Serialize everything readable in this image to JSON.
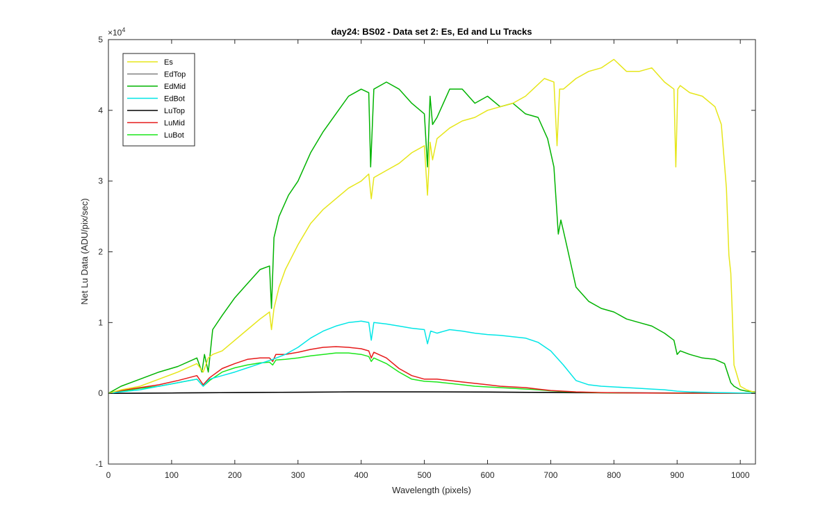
{
  "chart_data": {
    "type": "line",
    "title": "day24: BS02 - Data set 2: Es, Ed and Lu Tracks",
    "xlabel": "Wavelength (pixels)",
    "ylabel": "Net Lu Data (ADU/pix/sec)",
    "y_exponent_label": "×10",
    "y_exponent": "4",
    "xlim": [
      0,
      1024
    ],
    "ylim": [
      -1,
      5
    ],
    "x_ticks": [
      0,
      100,
      200,
      300,
      400,
      500,
      600,
      700,
      800,
      900,
      1000
    ],
    "x_tick_labels": [
      "0",
      "100",
      "200",
      "300",
      "400",
      "500",
      "600",
      "700",
      "800",
      "900",
      "1000"
    ],
    "y_ticks": [
      -1,
      0,
      1,
      2,
      3,
      4,
      5
    ],
    "y_tick_labels": [
      "-1",
      "0",
      "1",
      "2",
      "3",
      "4",
      "5"
    ],
    "y_units": "×10^4 ADU/pix/sec",
    "grid": false,
    "legend_position": "top-left",
    "series": [
      {
        "name": "Es",
        "color": "#e6e619",
        "x": [
          0,
          20,
          50,
          80,
          110,
          140,
          150,
          158,
          165,
          180,
          200,
          220,
          240,
          255,
          258,
          262,
          270,
          280,
          300,
          320,
          340,
          360,
          380,
          400,
          412,
          416,
          420,
          440,
          460,
          480,
          500,
          505,
          509,
          513,
          520,
          540,
          560,
          580,
          600,
          620,
          640,
          660,
          690,
          705,
          710,
          714,
          720,
          740,
          760,
          780,
          800,
          820,
          840,
          860,
          880,
          895,
          898,
          901,
          905,
          920,
          940,
          960,
          970,
          978,
          982,
          985,
          987,
          990,
          1000,
          1010,
          1020,
          1024
        ],
        "y": [
          0.0,
          0.05,
          0.1,
          0.2,
          0.3,
          0.42,
          0.3,
          0.5,
          0.55,
          0.6,
          0.75,
          0.9,
          1.05,
          1.15,
          0.9,
          1.2,
          1.5,
          1.75,
          2.1,
          2.4,
          2.6,
          2.75,
          2.9,
          3.0,
          3.1,
          2.75,
          3.05,
          3.15,
          3.25,
          3.4,
          3.5,
          2.8,
          3.55,
          3.3,
          3.6,
          3.75,
          3.85,
          3.9,
          4.0,
          4.05,
          4.1,
          4.2,
          4.45,
          4.4,
          3.5,
          4.3,
          4.3,
          4.45,
          4.55,
          4.6,
          4.72,
          4.55,
          4.55,
          4.6,
          4.4,
          4.3,
          3.2,
          4.3,
          4.35,
          4.25,
          4.2,
          4.05,
          3.8,
          2.9,
          1.95,
          1.7,
          1.2,
          0.4,
          0.1,
          0.05,
          0.02,
          0.02
        ]
      },
      {
        "name": "EdTop",
        "color": "#808080",
        "x": [
          0,
          100,
          200,
          300,
          400,
          500,
          600,
          700,
          800,
          900,
          1000,
          1024
        ],
        "y": [
          0.0,
          0.005,
          0.01,
          0.015,
          0.02,
          0.02,
          0.015,
          0.01,
          0.005,
          0.003,
          0.002,
          0.001
        ]
      },
      {
        "name": "EdMid",
        "color": "#00b300",
        "x": [
          0,
          20,
          50,
          80,
          110,
          140,
          148,
          152,
          158,
          165,
          180,
          200,
          220,
          240,
          255,
          258,
          262,
          270,
          285,
          300,
          320,
          340,
          360,
          380,
          400,
          412,
          415,
          420,
          440,
          460,
          480,
          500,
          505,
          509,
          513,
          520,
          540,
          560,
          580,
          600,
          620,
          640,
          660,
          680,
          695,
          705,
          712,
          716,
          720,
          725,
          740,
          760,
          780,
          800,
          820,
          840,
          860,
          880,
          895,
          900,
          905,
          920,
          940,
          960,
          975,
          985,
          990,
          1000,
          1010,
          1024
        ],
        "y": [
          0.0,
          0.1,
          0.2,
          0.3,
          0.38,
          0.5,
          0.3,
          0.55,
          0.3,
          0.9,
          1.1,
          1.35,
          1.55,
          1.75,
          1.8,
          1.2,
          2.2,
          2.5,
          2.8,
          3.0,
          3.4,
          3.7,
          3.95,
          4.2,
          4.3,
          4.25,
          3.2,
          4.3,
          4.4,
          4.3,
          4.1,
          3.95,
          3.2,
          4.2,
          3.8,
          3.9,
          4.3,
          4.3,
          4.1,
          4.2,
          4.05,
          4.1,
          3.95,
          3.9,
          3.6,
          3.2,
          2.25,
          2.45,
          2.3,
          2.1,
          1.5,
          1.3,
          1.2,
          1.15,
          1.05,
          1.0,
          0.95,
          0.85,
          0.75,
          0.55,
          0.6,
          0.55,
          0.5,
          0.48,
          0.42,
          0.15,
          0.1,
          0.05,
          0.03,
          0.02
        ]
      },
      {
        "name": "EdBot",
        "color": "#00e6e6",
        "x": [
          0,
          20,
          50,
          80,
          110,
          140,
          150,
          160,
          180,
          200,
          220,
          240,
          260,
          280,
          300,
          320,
          340,
          360,
          380,
          400,
          412,
          416,
          420,
          440,
          460,
          480,
          500,
          505,
          510,
          520,
          540,
          560,
          580,
          600,
          620,
          640,
          660,
          680,
          700,
          720,
          740,
          760,
          780,
          800,
          820,
          840,
          860,
          880,
          900,
          920,
          940,
          960,
          980,
          1000,
          1024
        ],
        "y": [
          0.0,
          0.02,
          0.05,
          0.1,
          0.15,
          0.2,
          0.1,
          0.2,
          0.25,
          0.3,
          0.36,
          0.42,
          0.48,
          0.55,
          0.65,
          0.78,
          0.88,
          0.95,
          1.0,
          1.02,
          1.0,
          0.75,
          1.0,
          0.98,
          0.95,
          0.92,
          0.9,
          0.7,
          0.88,
          0.85,
          0.9,
          0.88,
          0.85,
          0.83,
          0.82,
          0.8,
          0.78,
          0.72,
          0.6,
          0.4,
          0.18,
          0.12,
          0.1,
          0.09,
          0.08,
          0.07,
          0.06,
          0.05,
          0.03,
          0.02,
          0.015,
          0.01,
          0.008,
          0.005,
          0.005
        ]
      },
      {
        "name": "LuTop",
        "color": "#000000",
        "x": [
          0,
          100,
          200,
          300,
          400,
          500,
          600,
          700,
          800,
          900,
          1000,
          1024
        ],
        "y": [
          0.0,
          0.005,
          0.01,
          0.015,
          0.02,
          0.02,
          0.018,
          0.012,
          0.008,
          0.005,
          0.003,
          0.002
        ]
      },
      {
        "name": "LuMid",
        "color": "#e61919",
        "x": [
          0,
          20,
          50,
          80,
          110,
          140,
          150,
          160,
          180,
          200,
          220,
          240,
          255,
          260,
          265,
          280,
          300,
          320,
          340,
          360,
          380,
          400,
          412,
          416,
          420,
          440,
          460,
          480,
          500,
          520,
          540,
          560,
          580,
          600,
          620,
          640,
          660,
          680,
          700,
          720,
          740,
          760,
          780,
          800,
          850,
          900,
          950,
          1000,
          1024
        ],
        "y": [
          0.0,
          0.04,
          0.08,
          0.12,
          0.18,
          0.25,
          0.12,
          0.22,
          0.35,
          0.42,
          0.48,
          0.5,
          0.5,
          0.45,
          0.55,
          0.55,
          0.58,
          0.62,
          0.65,
          0.66,
          0.65,
          0.63,
          0.6,
          0.5,
          0.58,
          0.5,
          0.35,
          0.25,
          0.2,
          0.2,
          0.18,
          0.16,
          0.14,
          0.12,
          0.1,
          0.09,
          0.08,
          0.06,
          0.04,
          0.03,
          0.02,
          0.015,
          0.01,
          0.008,
          0.005,
          0.003,
          0.002,
          0.001,
          0.001
        ]
      },
      {
        "name": "LuBot",
        "color": "#19e619",
        "x": [
          0,
          20,
          50,
          80,
          110,
          140,
          150,
          160,
          180,
          200,
          220,
          240,
          255,
          260,
          265,
          280,
          300,
          320,
          340,
          360,
          380,
          400,
          412,
          416,
          420,
          440,
          460,
          480,
          500,
          520,
          540,
          560,
          580,
          600,
          620,
          640,
          660,
          680,
          700,
          720,
          740,
          760,
          780,
          800,
          850,
          900,
          950,
          1000,
          1024
        ],
        "y": [
          0.0,
          0.03,
          0.07,
          0.1,
          0.15,
          0.2,
          0.1,
          0.18,
          0.3,
          0.36,
          0.4,
          0.43,
          0.44,
          0.4,
          0.47,
          0.48,
          0.5,
          0.53,
          0.55,
          0.57,
          0.57,
          0.55,
          0.52,
          0.45,
          0.5,
          0.42,
          0.3,
          0.2,
          0.17,
          0.16,
          0.14,
          0.12,
          0.1,
          0.09,
          0.08,
          0.07,
          0.06,
          0.05,
          0.035,
          0.025,
          0.018,
          0.012,
          0.008,
          0.006,
          0.004,
          0.002,
          0.002,
          0.001,
          0.001
        ]
      }
    ]
  }
}
